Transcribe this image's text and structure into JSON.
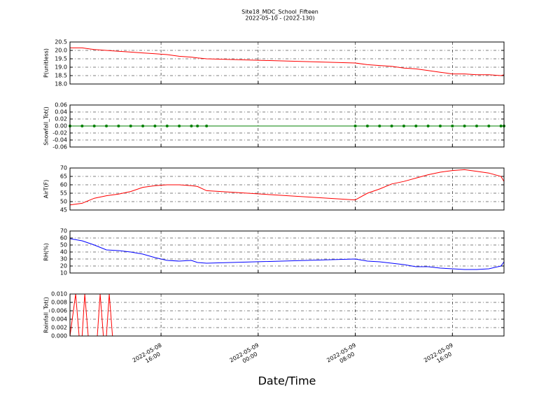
{
  "title": "Site18_MDC_School_Fifteen",
  "subtitle": "2022-05-10 - (2022-130)",
  "x_label": "Date/Time",
  "chart_data": [
    {
      "type": "line",
      "y_label": "P(unitless)",
      "x": [
        "2022-05-08 08:30",
        "2022-05-08 09:30",
        "2022-05-08 10:30",
        "2022-05-08 11:30",
        "2022-05-08 12:30",
        "2022-05-08 13:30",
        "2022-05-08 14:30",
        "2022-05-08 15:30",
        "2022-05-08 16:30",
        "2022-05-08 17:30",
        "2022-05-08 18:30",
        "2022-05-08 19:00",
        "2022-05-08 19:45",
        "2022-05-09 08:00",
        "2022-05-09 09:00",
        "2022-05-09 10:00",
        "2022-05-09 11:00",
        "2022-05-09 12:00",
        "2022-05-09 13:00",
        "2022-05-09 14:00",
        "2022-05-09 15:00",
        "2022-05-09 16:00",
        "2022-05-09 17:00",
        "2022-05-09 18:00",
        "2022-05-09 19:00",
        "2022-05-09 20:00",
        "2022-05-09 20:15"
      ],
      "series": [
        {
          "color": "#ff0000",
          "values": [
            20.15,
            20.15,
            20.05,
            20.0,
            19.95,
            19.9,
            19.85,
            19.8,
            19.75,
            19.65,
            19.6,
            19.55,
            19.5,
            19.25,
            19.15,
            19.1,
            19.05,
            18.95,
            18.9,
            18.8,
            18.7,
            18.6,
            18.6,
            18.55,
            18.55,
            18.5,
            18.55
          ]
        }
      ],
      "xlim": [
        "2022-05-08 08:30",
        "2022-05-09 20:15"
      ],
      "xticks": [
        "2022-05-08 16:00",
        "2022-05-09 00:00",
        "2022-05-09 08:00",
        "2022-05-09 16:00"
      ],
      "ylim": [
        18,
        20.5
      ],
      "yticks": [
        {
          "value": 18,
          "label": "18.0"
        },
        18.5,
        {
          "value": 19,
          "label": "19.0"
        },
        19.5,
        {
          "value": 20,
          "label": "20.0"
        },
        20.5
      ],
      "grid": true
    },
    {
      "type": "line",
      "y_label": "Snowfall_Tot()",
      "x": [
        "2022-05-08 08:30",
        "2022-05-08 09:30",
        "2022-05-08 10:30",
        "2022-05-08 11:30",
        "2022-05-08 12:30",
        "2022-05-08 13:30",
        "2022-05-08 14:30",
        "2022-05-08 15:30",
        "2022-05-08 16:30",
        "2022-05-08 17:30",
        "2022-05-08 18:30",
        "2022-05-08 19:00",
        "2022-05-08 19:45",
        "2022-05-09 08:00",
        "2022-05-09 09:00",
        "2022-05-09 10:00",
        "2022-05-09 11:00",
        "2022-05-09 12:00",
        "2022-05-09 13:00",
        "2022-05-09 14:00",
        "2022-05-09 15:00",
        "2022-05-09 16:00",
        "2022-05-09 17:00",
        "2022-05-09 18:00",
        "2022-05-09 19:00",
        "2022-05-09 20:00",
        "2022-05-09 20:15"
      ],
      "series": [
        {
          "color": "#008000",
          "marker": true,
          "values": [
            0,
            0,
            0,
            0,
            0,
            0,
            0,
            0,
            0,
            0,
            0,
            0,
            0,
            0,
            0,
            0,
            0,
            0,
            0,
            0,
            0,
            0,
            0,
            0,
            0,
            0,
            0
          ]
        }
      ],
      "xlim": [
        "2022-05-08 08:30",
        "2022-05-09 20:15"
      ],
      "xticks": [
        "2022-05-08 16:00",
        "2022-05-09 00:00",
        "2022-05-09 08:00",
        "2022-05-09 16:00"
      ],
      "ylim": [
        -0.06,
        0.06
      ],
      "yticks": [
        -0.06,
        -0.04,
        -0.02,
        {
          "value": 0,
          "label": "0.00"
        },
        0.02,
        0.04,
        0.06
      ],
      "grid": true
    },
    {
      "type": "line",
      "y_label": "AirT(F)",
      "x": [
        "2022-05-08 08:30",
        "2022-05-08 09:30",
        "2022-05-08 10:30",
        "2022-05-08 11:30",
        "2022-05-08 12:30",
        "2022-05-08 13:30",
        "2022-05-08 14:30",
        "2022-05-08 15:30",
        "2022-05-08 16:30",
        "2022-05-08 17:30",
        "2022-05-08 18:30",
        "2022-05-08 19:00",
        "2022-05-08 19:45",
        "2022-05-09 08:00",
        "2022-05-09 09:00",
        "2022-05-09 10:00",
        "2022-05-09 11:00",
        "2022-05-09 12:00",
        "2022-05-09 13:00",
        "2022-05-09 14:00",
        "2022-05-09 15:00",
        "2022-05-09 16:00",
        "2022-05-09 17:00",
        "2022-05-09 18:00",
        "2022-05-09 19:00",
        "2022-05-09 20:00",
        "2022-05-09 20:15"
      ],
      "series": [
        {
          "color": "#ff0000",
          "values": [
            48,
            49,
            52,
            53.5,
            54.5,
            56,
            58.5,
            59.5,
            60,
            60,
            59.5,
            59,
            56.5,
            51,
            55,
            57.5,
            60.5,
            62,
            64,
            66,
            67.5,
            68.5,
            69,
            68,
            67,
            65,
            62
          ]
        }
      ],
      "xlim": [
        "2022-05-08 08:30",
        "2022-05-09 20:15"
      ],
      "xticks": [
        "2022-05-08 16:00",
        "2022-05-09 00:00",
        "2022-05-09 08:00",
        "2022-05-09 16:00"
      ],
      "ylim": [
        45,
        70
      ],
      "yticks": [
        45,
        50,
        55,
        60,
        65,
        70
      ],
      "grid": true
    },
    {
      "type": "line",
      "y_label": "RH(%)",
      "x": [
        "2022-05-08 08:30",
        "2022-05-08 09:30",
        "2022-05-08 10:30",
        "2022-05-08 11:30",
        "2022-05-08 12:30",
        "2022-05-08 13:30",
        "2022-05-08 14:30",
        "2022-05-08 15:30",
        "2022-05-08 16:30",
        "2022-05-08 17:30",
        "2022-05-08 18:30",
        "2022-05-08 19:00",
        "2022-05-08 19:45",
        "2022-05-09 08:00",
        "2022-05-09 09:00",
        "2022-05-09 10:00",
        "2022-05-09 11:00",
        "2022-05-09 12:00",
        "2022-05-09 13:00",
        "2022-05-09 14:00",
        "2022-05-09 15:00",
        "2022-05-09 16:00",
        "2022-05-09 17:00",
        "2022-05-09 18:00",
        "2022-05-09 19:00",
        "2022-05-09 20:00",
        "2022-05-09 20:15"
      ],
      "series": [
        {
          "color": "#0000ff",
          "values": [
            59,
            56,
            50,
            43,
            42,
            40,
            37,
            32,
            28,
            27,
            28,
            25,
            24,
            30,
            27,
            26,
            24,
            22,
            19,
            19,
            17,
            16,
            15,
            15,
            16,
            20,
            26
          ]
        }
      ],
      "xlim": [
        "2022-05-08 08:30",
        "2022-05-09 20:15"
      ],
      "xticks": [
        "2022-05-08 16:00",
        "2022-05-09 00:00",
        "2022-05-09 08:00",
        "2022-05-09 16:00"
      ],
      "ylim": [
        10,
        70
      ],
      "yticks": [
        10,
        20,
        30,
        40,
        50,
        60,
        70
      ],
      "grid": true
    },
    {
      "type": "line",
      "y_label": "Rainfall_Tot()",
      "x": [
        "2022-05-08 08:30",
        "2022-05-08 08:58",
        "2022-05-08 09:15",
        "2022-05-08 09:30",
        "2022-05-08 09:43",
        "2022-05-08 10:00",
        "2022-05-08 10:45",
        "2022-05-08 10:59",
        "2022-05-08 11:15",
        "2022-05-08 11:30",
        "2022-05-08 11:44",
        "2022-05-08 12:00",
        "2022-05-08 19:45",
        "2022-05-09 08:00",
        "2022-05-09 20:15"
      ],
      "series": [
        {
          "color": "#ff0000",
          "values": [
            0,
            0.01,
            0,
            0,
            0.01,
            0,
            0,
            0.01,
            0,
            0,
            0.01,
            0,
            0,
            0,
            0
          ]
        }
      ],
      "xlim": [
        "2022-05-08 08:30",
        "2022-05-09 20:15"
      ],
      "xticks": [
        "2022-05-08 16:00",
        "2022-05-09 00:00",
        "2022-05-09 08:00",
        "2022-05-09 16:00"
      ],
      "ylim": [
        0,
        0.01
      ],
      "yticks": [
        {
          "value": 0,
          "label": "0.000"
        },
        0.002,
        0.004,
        0.006,
        0.008,
        {
          "value": 0.01,
          "label": "0.010"
        }
      ],
      "grid": true
    }
  ]
}
